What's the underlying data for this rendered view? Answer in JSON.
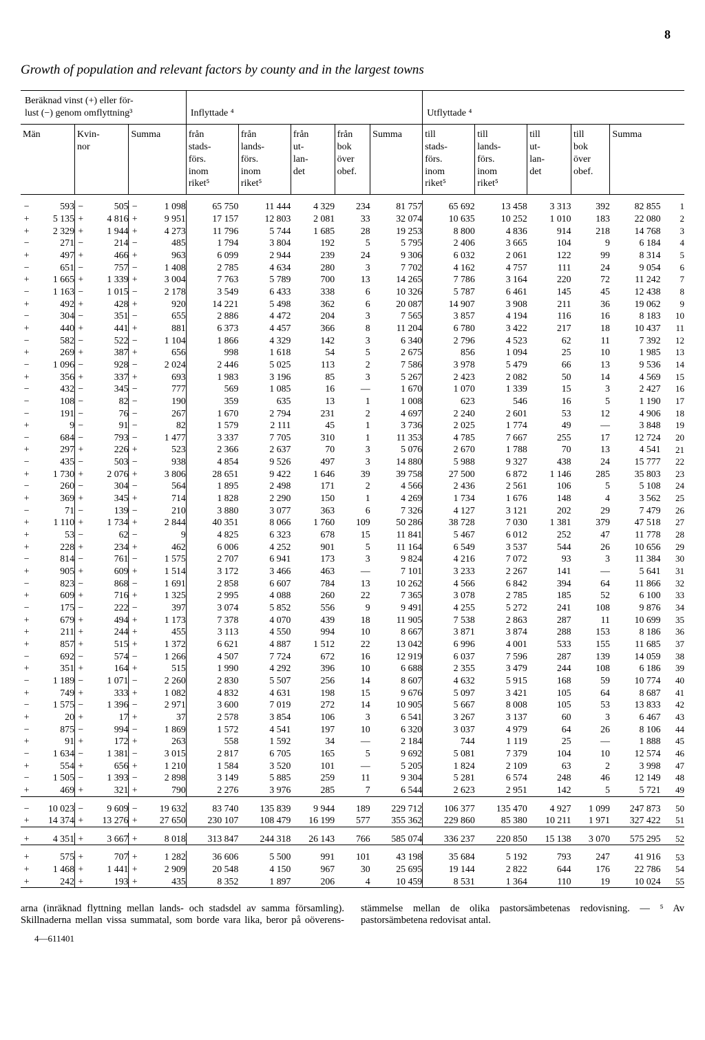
{
  "page_number": "8",
  "title": "Growth of population and relevant factors by county and in the largest towns",
  "headers": {
    "group_left": "Beräknad vinst (+) eller för-\nlust (−) genom omflyttning³",
    "group_mid": "Inflyttade ⁴",
    "group_right": "Utflyttade ⁴",
    "man": "Män",
    "kvinnor": "Kvin-\nnor",
    "summa": "Summa",
    "fran_stads": "från\nstads-\nförs.\ninom\nriket⁵",
    "fran_lands": "från\nlands-\nförs.\ninom\nriket⁵",
    "fran_ut": "från\nut-\nlan-\ndet",
    "fran_bok": "från\nbok\növer\nobef.",
    "summa2": "Summa",
    "till_stads": "till\nstads-\nförs.\ninom\nriket⁵",
    "till_lands": "till\nlands-\nförs.\ninom\nriket⁵",
    "till_ut": "till\nut-\nlan-\ndet",
    "till_bok": "till\nbok\növer\nobef.",
    "summa3": "Summa"
  },
  "rows": [
    [
      "−",
      "593",
      "−",
      "505",
      "−",
      "1 098",
      "65 750",
      "11 444",
      "4 329",
      "234",
      "81 757",
      "65 692",
      "13 458",
      "3 313",
      "392",
      "82 855",
      "1"
    ],
    [
      "+",
      "5 135",
      "+",
      "4 816",
      "+",
      "9 951",
      "17 157",
      "12 803",
      "2 081",
      "33",
      "32 074",
      "10 635",
      "10 252",
      "1 010",
      "183",
      "22 080",
      "2"
    ],
    [
      "+",
      "2 329",
      "+",
      "1 944",
      "+",
      "4 273",
      "11 796",
      "5 744",
      "1 685",
      "28",
      "19 253",
      "8 800",
      "4 836",
      "914",
      "218",
      "14 768",
      "3"
    ],
    [
      "−",
      "271",
      "−",
      "214",
      "−",
      "485",
      "1 794",
      "3 804",
      "192",
      "5",
      "5 795",
      "2 406",
      "3 665",
      "104",
      "9",
      "6 184",
      "4"
    ],
    [
      "+",
      "497",
      "+",
      "466",
      "+",
      "963",
      "6 099",
      "2 944",
      "239",
      "24",
      "9 306",
      "6 032",
      "2 061",
      "122",
      "99",
      "8 314",
      "5"
    ],
    [
      "−",
      "651",
      "−",
      "757",
      "−",
      "1 408",
      "2 785",
      "4 634",
      "280",
      "3",
      "7 702",
      "4 162",
      "4 757",
      "111",
      "24",
      "9 054",
      "6"
    ],
    [
      "+",
      "1 665",
      "+",
      "1 339",
      "+",
      "3 004",
      "7 763",
      "5 789",
      "700",
      "13",
      "14 265",
      "7 786",
      "3 164",
      "220",
      "72",
      "11 242",
      "7"
    ],
    [
      "−",
      "1 163",
      "−",
      "1 015",
      "−",
      "2 178",
      "3 549",
      "6 433",
      "338",
      "6",
      "10 326",
      "5 787",
      "6 461",
      "145",
      "45",
      "12 438",
      "8"
    ],
    [
      "+",
      "492",
      "+",
      "428",
      "+",
      "920",
      "14 221",
      "5 498",
      "362",
      "6",
      "20 087",
      "14 907",
      "3 908",
      "211",
      "36",
      "19 062",
      "9"
    ],
    [
      "−",
      "304",
      "−",
      "351",
      "−",
      "655",
      "2 886",
      "4 472",
      "204",
      "3",
      "7 565",
      "3 857",
      "4 194",
      "116",
      "16",
      "8 183",
      "10"
    ],
    [
      "+",
      "440",
      "+",
      "441",
      "+",
      "881",
      "6 373",
      "4 457",
      "366",
      "8",
      "11 204",
      "6 780",
      "3 422",
      "217",
      "18",
      "10 437",
      "11"
    ],
    [
      "−",
      "582",
      "−",
      "522",
      "−",
      "1 104",
      "1 866",
      "4 329",
      "142",
      "3",
      "6 340",
      "2 796",
      "4 523",
      "62",
      "11",
      "7 392",
      "12"
    ],
    [
      "+",
      "269",
      "+",
      "387",
      "+",
      "656",
      "998",
      "1 618",
      "54",
      "5",
      "2 675",
      "856",
      "1 094",
      "25",
      "10",
      "1 985",
      "13"
    ],
    [
      "−",
      "1 096",
      "−",
      "928",
      "−",
      "2 024",
      "2 446",
      "5 025",
      "113",
      "2",
      "7 586",
      "3 978",
      "5 479",
      "66",
      "13",
      "9 536",
      "14"
    ],
    [
      "+",
      "356",
      "+",
      "337",
      "+",
      "693",
      "1 983",
      "3 196",
      "85",
      "3",
      "5 267",
      "2 423",
      "2 082",
      "50",
      "14",
      "4 569",
      "15"
    ],
    [
      "−",
      "432",
      "−",
      "345",
      "−",
      "777",
      "569",
      "1 085",
      "16",
      "—",
      "1 670",
      "1 070",
      "1 339",
      "15",
      "3",
      "2 427",
      "16"
    ],
    [
      "−",
      "108",
      "−",
      "82",
      "−",
      "190",
      "359",
      "635",
      "13",
      "1",
      "1 008",
      "623",
      "546",
      "16",
      "5",
      "1 190",
      "17"
    ],
    [
      "−",
      "191",
      "−",
      "76",
      "−",
      "267",
      "1 670",
      "2 794",
      "231",
      "2",
      "4 697",
      "2 240",
      "2 601",
      "53",
      "12",
      "4 906",
      "18"
    ],
    [
      "+",
      "9",
      "−",
      "91",
      "−",
      "82",
      "1 579",
      "2 111",
      "45",
      "1",
      "3 736",
      "2 025",
      "1 774",
      "49",
      "—",
      "3 848",
      "19"
    ],
    [
      "−",
      "684",
      "−",
      "793",
      "−",
      "1 477",
      "3 337",
      "7 705",
      "310",
      "1",
      "11 353",
      "4 785",
      "7 667",
      "255",
      "17",
      "12 724",
      "20"
    ],
    [
      "+",
      "297",
      "+",
      "226",
      "+",
      "523",
      "2 366",
      "2 637",
      "70",
      "3",
      "5 076",
      "2 670",
      "1 788",
      "70",
      "13",
      "4 541",
      "21"
    ],
    [
      "−",
      "435",
      "−",
      "503",
      "−",
      "938",
      "4 854",
      "9 526",
      "497",
      "3",
      "14 880",
      "5 988",
      "9 327",
      "438",
      "24",
      "15 777",
      "22"
    ],
    [
      "+",
      "1 730",
      "+",
      "2 076",
      "+",
      "3 806",
      "28 651",
      "9 422",
      "1 646",
      "39",
      "39 758",
      "27 500",
      "6 872",
      "1 146",
      "285",
      "35 803",
      "23"
    ],
    [
      "−",
      "260",
      "−",
      "304",
      "−",
      "564",
      "1 895",
      "2 498",
      "171",
      "2",
      "4 566",
      "2 436",
      "2 561",
      "106",
      "5",
      "5 108",
      "24"
    ],
    [
      "+",
      "369",
      "+",
      "345",
      "+",
      "714",
      "1 828",
      "2 290",
      "150",
      "1",
      "4 269",
      "1 734",
      "1 676",
      "148",
      "4",
      "3 562",
      "25"
    ],
    [
      "−",
      "71",
      "−",
      "139",
      "−",
      "210",
      "3 880",
      "3 077",
      "363",
      "6",
      "7 326",
      "4 127",
      "3 121",
      "202",
      "29",
      "7 479",
      "26"
    ],
    [
      "+",
      "1 110",
      "+",
      "1 734",
      "+",
      "2 844",
      "40 351",
      "8 066",
      "1 760",
      "109",
      "50 286",
      "38 728",
      "7 030",
      "1 381",
      "379",
      "47 518",
      "27"
    ],
    [
      "+",
      "53",
      "−",
      "62",
      "−",
      "9",
      "4 825",
      "6 323",
      "678",
      "15",
      "11 841",
      "5 467",
      "6 012",
      "252",
      "47",
      "11 778",
      "28"
    ],
    [
      "+",
      "228",
      "+",
      "234",
      "+",
      "462",
      "6 006",
      "4 252",
      "901",
      "5",
      "11 164",
      "6 549",
      "3 537",
      "544",
      "26",
      "10 656",
      "29"
    ],
    [
      "−",
      "814",
      "−",
      "761",
      "−",
      "1 575",
      "2 707",
      "6 941",
      "173",
      "3",
      "9 824",
      "4 216",
      "7 072",
      "93",
      "3",
      "11 384",
      "30"
    ],
    [
      "+",
      "905",
      "+",
      "609",
      "+",
      "1 514",
      "3 172",
      "3 466",
      "463",
      "—",
      "7 101",
      "3 233",
      "2 267",
      "141",
      "—",
      "5 641",
      "31"
    ],
    [
      "−",
      "823",
      "−",
      "868",
      "−",
      "1 691",
      "2 858",
      "6 607",
      "784",
      "13",
      "10 262",
      "4 566",
      "6 842",
      "394",
      "64",
      "11 866",
      "32"
    ],
    [
      "+",
      "609",
      "+",
      "716",
      "+",
      "1 325",
      "2 995",
      "4 088",
      "260",
      "22",
      "7 365",
      "3 078",
      "2 785",
      "185",
      "52",
      "6 100",
      "33"
    ],
    [
      "−",
      "175",
      "−",
      "222",
      "−",
      "397",
      "3 074",
      "5 852",
      "556",
      "9",
      "9 491",
      "4 255",
      "5 272",
      "241",
      "108",
      "9 876",
      "34"
    ],
    [
      "+",
      "679",
      "+",
      "494",
      "+",
      "1 173",
      "7 378",
      "4 070",
      "439",
      "18",
      "11 905",
      "7 538",
      "2 863",
      "287",
      "11",
      "10 699",
      "35"
    ],
    [
      "+",
      "211",
      "+",
      "244",
      "+",
      "455",
      "3 113",
      "4 550",
      "994",
      "10",
      "8 667",
      "3 871",
      "3 874",
      "288",
      "153",
      "8 186",
      "36"
    ],
    [
      "+",
      "857",
      "+",
      "515",
      "+",
      "1 372",
      "6 621",
      "4 887",
      "1 512",
      "22",
      "13 042",
      "6 996",
      "4 001",
      "533",
      "155",
      "11 685",
      "37"
    ],
    [
      "−",
      "692",
      "−",
      "574",
      "−",
      "1 266",
      "4 507",
      "7 724",
      "672",
      "16",
      "12 919",
      "6 037",
      "7 596",
      "287",
      "139",
      "14 059",
      "38"
    ],
    [
      "+",
      "351",
      "+",
      "164",
      "+",
      "515",
      "1 990",
      "4 292",
      "396",
      "10",
      "6 688",
      "2 355",
      "3 479",
      "244",
      "108",
      "6 186",
      "39"
    ],
    [
      "−",
      "1 189",
      "−",
      "1 071",
      "−",
      "2 260",
      "2 830",
      "5 507",
      "256",
      "14",
      "8 607",
      "4 632",
      "5 915",
      "168",
      "59",
      "10 774",
      "40"
    ],
    [
      "+",
      "749",
      "+",
      "333",
      "+",
      "1 082",
      "4 832",
      "4 631",
      "198",
      "15",
      "9 676",
      "5 097",
      "3 421",
      "105",
      "64",
      "8 687",
      "41"
    ],
    [
      "−",
      "1 575",
      "−",
      "1 396",
      "−",
      "2 971",
      "3 600",
      "7 019",
      "272",
      "14",
      "10 905",
      "5 667",
      "8 008",
      "105",
      "53",
      "13 833",
      "42"
    ],
    [
      "+",
      "20",
      "+",
      "17",
      "+",
      "37",
      "2 578",
      "3 854",
      "106",
      "3",
      "6 541",
      "3 267",
      "3 137",
      "60",
      "3",
      "6 467",
      "43"
    ],
    [
      "−",
      "875",
      "−",
      "994",
      "−",
      "1 869",
      "1 572",
      "4 541",
      "197",
      "10",
      "6 320",
      "3 037",
      "4 979",
      "64",
      "26",
      "8 106",
      "44"
    ],
    [
      "+",
      "91",
      "+",
      "172",
      "+",
      "263",
      "558",
      "1 592",
      "34",
      "—",
      "2 184",
      "744",
      "1 119",
      "25",
      "—",
      "1 888",
      "45"
    ],
    [
      "−",
      "1 634",
      "−",
      "1 381",
      "−",
      "3 015",
      "2 817",
      "6 705",
      "165",
      "5",
      "9 692",
      "5 081",
      "7 379",
      "104",
      "10",
      "12 574",
      "46"
    ],
    [
      "+",
      "554",
      "+",
      "656",
      "+",
      "1 210",
      "1 584",
      "3 520",
      "101",
      "—",
      "5 205",
      "1 824",
      "2 109",
      "63",
      "2",
      "3 998",
      "47"
    ],
    [
      "−",
      "1 505",
      "−",
      "1 393",
      "−",
      "2 898",
      "3 149",
      "5 885",
      "259",
      "11",
      "9 304",
      "5 281",
      "6 574",
      "248",
      "46",
      "12 149",
      "48"
    ],
    [
      "+",
      "469",
      "+",
      "321",
      "+",
      "790",
      "2 276",
      "3 976",
      "285",
      "7",
      "6 544",
      "2 623",
      "2 951",
      "142",
      "5",
      "5 721",
      "49"
    ]
  ],
  "subtotals": [
    [
      "−",
      "10 023",
      "−",
      "9 609",
      "−",
      "19 632",
      "83 740",
      "135 839",
      "9 944",
      "189",
      "229 712",
      "106 377",
      "135 470",
      "4 927",
      "1 099",
      "247 873",
      "50"
    ],
    [
      "+",
      "14 374",
      "+",
      "13 276",
      "+",
      "27 650",
      "230 107",
      "108 479",
      "16 199",
      "577",
      "355 362",
      "229 860",
      "85 380",
      "10 211",
      "1 971",
      "327 422",
      "51"
    ]
  ],
  "grand": [
    "+",
    "4 351",
    "+",
    "3 667",
    "+",
    "8 018",
    "313 847",
    "244 318",
    "26 143",
    "766",
    "585 074",
    "336 237",
    "220 850",
    "15 138",
    "3 070",
    "575 295",
    "52"
  ],
  "tail": [
    [
      "+",
      "575",
      "+",
      "707",
      "+",
      "1 282",
      "36 606",
      "5 500",
      "991",
      "101",
      "43 198",
      "35 684",
      "5 192",
      "793",
      "247",
      "41 916",
      "53"
    ],
    [
      "+",
      "1 468",
      "+",
      "1 441",
      "+",
      "2 909",
      "20 548",
      "4 150",
      "967",
      "30",
      "25 695",
      "19 144",
      "2 822",
      "644",
      "176",
      "22 786",
      "54"
    ],
    [
      "+",
      "242",
      "+",
      "193",
      "+",
      "435",
      "8 352",
      "1 897",
      "206",
      "4",
      "10 459",
      "8 531",
      "1 364",
      "110",
      "19",
      "10 024",
      "55"
    ]
  ],
  "footnote_left": "arna (inräknad flyttning mellan lands- och stadsdel av samma församling). Skillnaderna mellan vissa summatal, som borde vara lika, beror på oöverens-",
  "footnote_right": "stämmelse mellan de olika pastorsämbetenas redovisning. — ⁵ Av pastorsämbetena redovisat antal.",
  "folio": "4—611401"
}
